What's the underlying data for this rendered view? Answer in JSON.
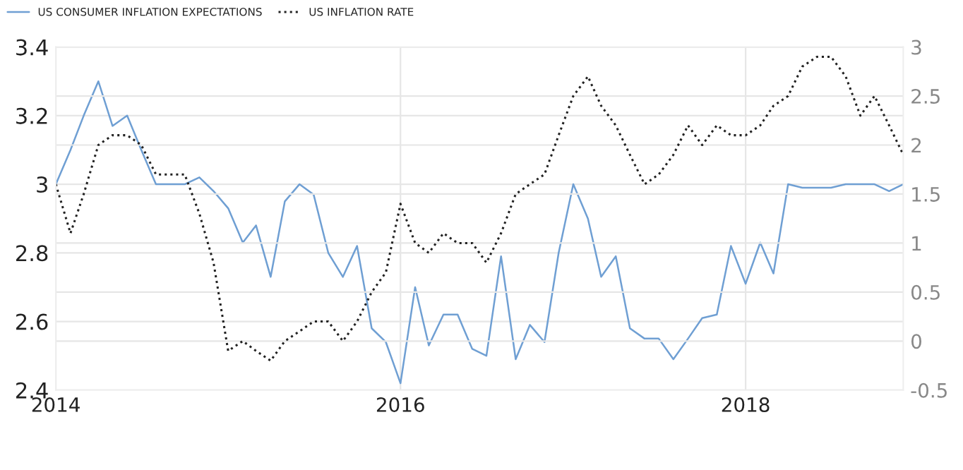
{
  "chart_data": {
    "type": "line",
    "x": [
      "2014-01",
      "2014-02",
      "2014-03",
      "2014-04",
      "2014-05",
      "2014-06",
      "2014-07",
      "2014-08",
      "2014-09",
      "2014-10",
      "2014-11",
      "2014-12",
      "2015-01",
      "2015-02",
      "2015-03",
      "2015-04",
      "2015-05",
      "2015-06",
      "2015-07",
      "2015-08",
      "2015-09",
      "2015-10",
      "2015-11",
      "2015-12",
      "2016-01",
      "2016-02",
      "2016-03",
      "2016-04",
      "2016-05",
      "2016-06",
      "2016-07",
      "2016-08",
      "2016-09",
      "2016-10",
      "2016-11",
      "2016-12",
      "2017-01",
      "2017-02",
      "2017-03",
      "2017-04",
      "2017-05",
      "2017-06",
      "2017-07",
      "2017-08",
      "2017-09",
      "2017-10",
      "2017-11",
      "2017-12",
      "2018-01",
      "2018-02",
      "2018-03",
      "2018-04",
      "2018-05",
      "2018-06",
      "2018-07",
      "2018-08",
      "2018-09",
      "2018-10",
      "2018-11",
      "2018-12"
    ],
    "series": [
      {
        "name": "US CONSUMER INFLATION EXPECTATIONS",
        "color": "#6f9fd3",
        "line_style": "solid",
        "values": [
          3.0,
          3.1,
          3.2,
          3.3,
          3.17,
          3.2,
          3.1,
          3.0,
          3.0,
          3.0,
          3.02,
          2.98,
          2.93,
          2.83,
          2.88,
          2.73,
          2.95,
          3.0,
          2.97,
          2.8,
          2.73,
          2.82,
          2.58,
          2.54,
          2.42,
          2.7,
          2.53,
          2.62,
          2.62,
          2.52,
          2.5,
          2.79,
          2.49,
          2.59,
          2.54,
          2.8,
          3.0,
          2.9,
          2.73,
          2.79,
          2.58,
          2.55,
          2.55,
          2.49,
          2.55,
          2.61,
          2.62,
          2.82,
          2.71,
          2.83,
          2.74,
          3.0,
          2.99,
          2.99,
          2.99,
          3.0,
          3.0,
          3.0,
          2.98,
          3.0
        ]
      },
      {
        "name": "US INFLATION RATE",
        "color": "#222222",
        "line_style": "dotted",
        "axis": "y2",
        "values": [
          1.6,
          1.1,
          1.5,
          2.0,
          2.1,
          2.1,
          2.0,
          1.7,
          1.7,
          1.7,
          1.3,
          0.8,
          -0.1,
          0.0,
          -0.1,
          -0.2,
          0.0,
          0.1,
          0.2,
          0.2,
          0.0,
          0.2,
          0.5,
          0.7,
          1.4,
          1.0,
          0.9,
          1.1,
          1.0,
          1.0,
          0.8,
          1.1,
          1.5,
          1.6,
          1.7,
          2.1,
          2.5,
          2.7,
          2.4,
          2.2,
          1.9,
          1.6,
          1.7,
          1.9,
          2.2,
          2.0,
          2.2,
          2.1,
          2.1,
          2.2,
          2.4,
          2.5,
          2.8,
          2.9,
          2.9,
          2.7,
          2.3,
          2.5,
          2.2,
          1.9
        ]
      }
    ],
    "xlim": [
      "2014-01",
      "2018-12"
    ],
    "xticks": [
      "2014",
      "2016",
      "2018"
    ],
    "ylim": [
      2.4,
      3.4
    ],
    "yticks": [
      2.4,
      2.6,
      2.8,
      3,
      3.2,
      3.4
    ],
    "y2lim": [
      -0.5,
      3
    ],
    "y2ticks": [
      -0.5,
      0,
      0.5,
      1,
      1.5,
      2,
      2.5,
      3
    ],
    "grid": true,
    "legend": "top left"
  }
}
